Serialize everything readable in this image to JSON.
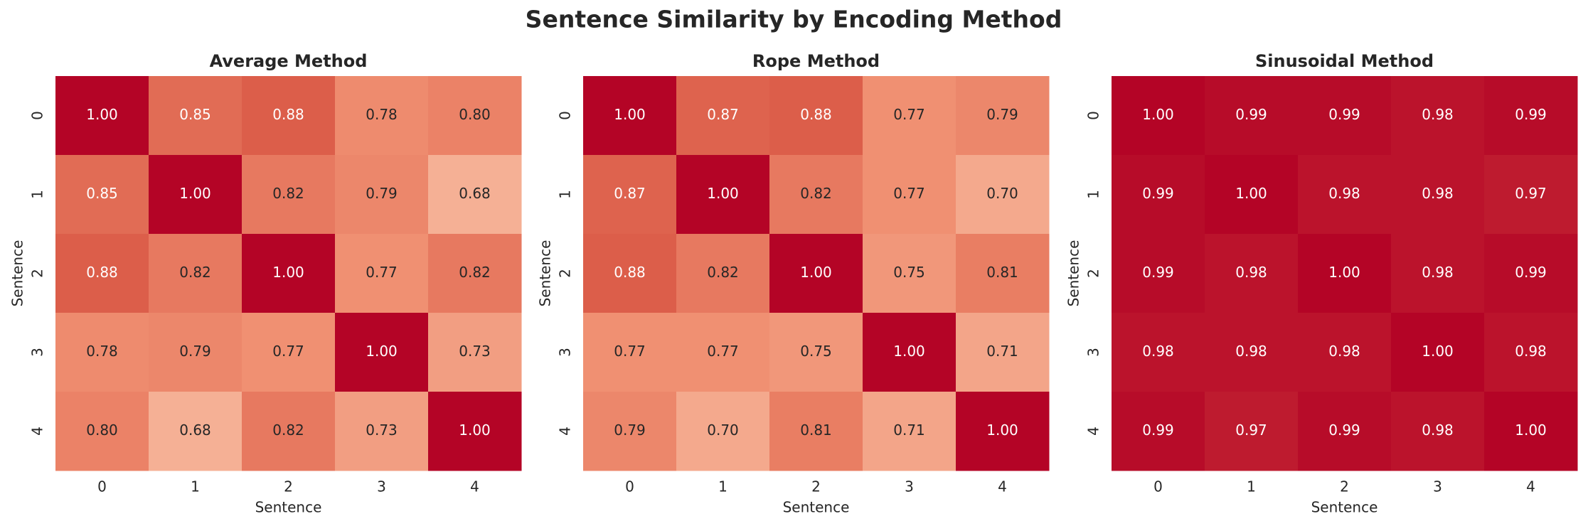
{
  "title": "Sentence Similarity by Encoding Method",
  "chart_data": [
    {
      "type": "heatmap",
      "title": "Average Method",
      "xlabel": "Sentence",
      "ylabel": "Sentence",
      "x": [
        0,
        1,
        2,
        3,
        4
      ],
      "y": [
        0,
        1,
        2,
        3,
        4
      ],
      "values": [
        [
          1,
          0.85,
          0.88,
          0.78,
          0.8
        ],
        [
          0.85,
          1,
          0.82,
          0.79,
          0.68
        ],
        [
          0.88,
          0.82,
          1,
          0.77,
          0.82
        ],
        [
          0.78,
          0.79,
          0.77,
          1,
          0.73
        ],
        [
          0.8,
          0.68,
          0.82,
          0.73,
          1
        ]
      ],
      "value_labels": [
        [
          "1.00",
          "0.85",
          "0.88",
          "0.78",
          "0.80"
        ],
        [
          "0.85",
          "1.00",
          "0.82",
          "0.79",
          "0.68"
        ],
        [
          "0.88",
          "0.82",
          "1.00",
          "0.77",
          "0.82"
        ],
        [
          "0.78",
          "0.79",
          "0.77",
          "1.00",
          "0.73"
        ],
        [
          "0.80",
          "0.68",
          "0.82",
          "0.73",
          "1.00"
        ]
      ]
    },
    {
      "type": "heatmap",
      "title": "Rope Method",
      "xlabel": "Sentence",
      "ylabel": "Sentence",
      "x": [
        0,
        1,
        2,
        3,
        4
      ],
      "y": [
        0,
        1,
        2,
        3,
        4
      ],
      "values": [
        [
          1,
          0.87,
          0.88,
          0.77,
          0.79
        ],
        [
          0.87,
          1,
          0.82,
          0.77,
          0.7
        ],
        [
          0.88,
          0.82,
          1,
          0.75,
          0.81
        ],
        [
          0.77,
          0.77,
          0.75,
          1,
          0.71
        ],
        [
          0.79,
          0.7,
          0.81,
          0.71,
          1
        ]
      ],
      "value_labels": [
        [
          "1.00",
          "0.87",
          "0.88",
          "0.77",
          "0.79"
        ],
        [
          "0.87",
          "1.00",
          "0.82",
          "0.77",
          "0.70"
        ],
        [
          "0.88",
          "0.82",
          "1.00",
          "0.75",
          "0.81"
        ],
        [
          "0.77",
          "0.77",
          "0.75",
          "1.00",
          "0.71"
        ],
        [
          "0.79",
          "0.70",
          "0.81",
          "0.71",
          "1.00"
        ]
      ]
    },
    {
      "type": "heatmap",
      "title": "Sinusoidal Method",
      "xlabel": "Sentence",
      "ylabel": "Sentence",
      "x": [
        0,
        1,
        2,
        3,
        4
      ],
      "y": [
        0,
        1,
        2,
        3,
        4
      ],
      "values": [
        [
          1,
          0.99,
          0.99,
          0.98,
          0.99
        ],
        [
          0.99,
          1,
          0.98,
          0.98,
          0.97
        ],
        [
          0.99,
          0.98,
          1,
          0.98,
          0.99
        ],
        [
          0.98,
          0.98,
          0.98,
          1,
          0.98
        ],
        [
          0.99,
          0.97,
          0.99,
          0.98,
          1
        ]
      ],
      "value_labels": [
        [
          "1.00",
          "0.99",
          "0.99",
          "0.98",
          "0.99"
        ],
        [
          "0.99",
          "1.00",
          "0.98",
          "0.98",
          "0.97"
        ],
        [
          "0.99",
          "0.98",
          "1.00",
          "0.98",
          "0.99"
        ],
        [
          "0.98",
          "0.98",
          "0.98",
          "1.00",
          "0.98"
        ],
        [
          "0.99",
          "0.97",
          "0.99",
          "0.98",
          "1.00"
        ]
      ]
    }
  ]
}
